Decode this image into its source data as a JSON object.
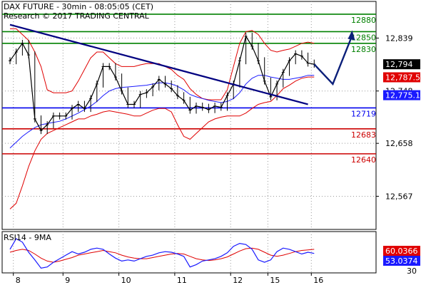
{
  "chart_data": [
    {
      "type": "line",
      "title": "DAX FUTURE - 30min - 08:05:05 (CET)",
      "subtitle": "Research © 2017 TRADING CENTRAL",
      "x_ticks": [
        "8",
        "9",
        "10",
        "11",
        "12",
        "15",
        "16"
      ],
      "y_ticks": [
        "12,839",
        "12,748",
        "12,658",
        "12,567"
      ],
      "ylim": [
        12510,
        12902
      ],
      "grid": true,
      "colors": {
        "price": "#000000",
        "bollinger": "#e00000",
        "moving_average": "#1a1aff",
        "trendline": "#000080",
        "resistance": "#008000",
        "pivot": "#0000ee",
        "support": "#cc0000",
        "arrow": "#0b1f7a"
      },
      "levels": [
        {
          "value": 12880,
          "label": "12880",
          "role": "resistance"
        },
        {
          "value": 12850,
          "label": "12850",
          "role": "resistance"
        },
        {
          "value": 12830,
          "label": "12830",
          "role": "resistance"
        },
        {
          "value": 12719,
          "label": "12719",
          "role": "pivot"
        },
        {
          "value": 12683,
          "label": "12683",
          "role": "support"
        },
        {
          "value": 12640,
          "label": "12640",
          "role": "support"
        }
      ],
      "value_tags": [
        {
          "label": "12,794",
          "value": 12794,
          "color": "#000000"
        },
        {
          "label": "12,787.5",
          "value": 12787.5,
          "color": "#e00000"
        },
        {
          "label": "12,775.1",
          "value": 12775.1,
          "color": "#1a1aff"
        }
      ],
      "series": [
        {
          "role": "price",
          "values": [
            12800,
            12815,
            12830,
            12810,
            12700,
            12680,
            12690,
            12705,
            12705,
            12705,
            12718,
            12725,
            12718,
            12735,
            12760,
            12790,
            12790,
            12772,
            12748,
            12725,
            12725,
            12742,
            12745,
            12755,
            12768,
            12760,
            12752,
            12740,
            12732,
            12715,
            12722,
            12720,
            12716,
            12722,
            12720,
            12740,
            12760,
            12800,
            12842,
            12825,
            12800,
            12765,
            12738,
            12760,
            12780,
            12800,
            12812,
            12808,
            12796,
            12794
          ]
        },
        {
          "role": "bollinger-upper",
          "values": [
            12855,
            12855,
            12845,
            12835,
            12815,
            12790,
            12750,
            12745,
            12745,
            12745,
            12748,
            12765,
            12785,
            12805,
            12815,
            12815,
            12805,
            12795,
            12790,
            12790,
            12790,
            12793,
            12795,
            12795,
            12795,
            12790,
            12785,
            12775,
            12768,
            12752,
            12742,
            12735,
            12733,
            12733,
            12733,
            12750,
            12790,
            12830,
            12850,
            12852,
            12845,
            12830,
            12818,
            12815,
            12818,
            12820,
            12825,
            12830,
            12832,
            12830
          ]
        },
        {
          "role": "bollinger-lower",
          "values": [
            12545,
            12555,
            12585,
            12618,
            12645,
            12665,
            12675,
            12680,
            12685,
            12690,
            12695,
            12700,
            12700,
            12705,
            12708,
            12712,
            12714,
            12712,
            12710,
            12708,
            12705,
            12705,
            12710,
            12715,
            12718,
            12718,
            12712,
            12690,
            12670,
            12665,
            12675,
            12685,
            12695,
            12700,
            12703,
            12705,
            12705,
            12705,
            12710,
            12718,
            12725,
            12728,
            12730,
            12740,
            12752,
            12758,
            12765,
            12770,
            12772,
            12772
          ]
        },
        {
          "role": "moving-average",
          "values": [
            12650,
            12660,
            12670,
            12678,
            12685,
            12690,
            12692,
            12694,
            12696,
            12700,
            12705,
            12710,
            12716,
            12722,
            12730,
            12740,
            12748,
            12752,
            12754,
            12755,
            12756,
            12757,
            12758,
            12760,
            12762,
            12762,
            12760,
            12756,
            12750,
            12742,
            12738,
            12735,
            12732,
            12730,
            12728,
            12730,
            12735,
            12745,
            12760,
            12770,
            12775,
            12775,
            12772,
            12770,
            12768,
            12768,
            12770,
            12772,
            12775,
            12775
          ]
        }
      ],
      "annotations": {
        "trendline": {
          "start_index": 0,
          "start_value": 12862,
          "end_index": 48,
          "end_value": 12725
        },
        "projection_arrow": {
          "from_index": 49,
          "from_value": 12794,
          "via_index": 52,
          "via_value": 12760,
          "to_index": 55,
          "to_value": 12850
        }
      }
    },
    {
      "type": "line",
      "title": "RSI14 - 9MA",
      "y_ticks": [
        "30"
      ],
      "ylim": [
        20,
        90
      ],
      "colors": {
        "rsi": "#1a1aff",
        "ma": "#e00000"
      },
      "value_tags": [
        {
          "label": "60.0366",
          "value": 60.0366,
          "color": "#e00000"
        },
        {
          "label": "53.0374",
          "value": 53.0374,
          "color": "#1a1aff"
        }
      ],
      "series": [
        {
          "role": "rsi",
          "values": [
            60,
            78,
            72,
            55,
            42,
            28,
            30,
            38,
            44,
            50,
            56,
            52,
            55,
            60,
            62,
            60,
            52,
            45,
            40,
            42,
            40,
            44,
            48,
            50,
            54,
            56,
            55,
            52,
            48,
            30,
            34,
            40,
            42,
            44,
            48,
            54,
            65,
            70,
            68,
            60,
            42,
            38,
            42,
            56,
            62,
            60,
            56,
            52,
            55,
            53
          ]
        },
        {
          "role": "rsi-ma",
          "values": [
            55,
            58,
            60,
            58,
            52,
            45,
            40,
            38,
            40,
            43,
            46,
            50,
            52,
            54,
            56,
            58,
            56,
            54,
            50,
            47,
            45,
            44,
            44,
            46,
            48,
            50,
            52,
            53,
            52,
            48,
            44,
            42,
            41,
            42,
            44,
            47,
            52,
            57,
            61,
            62,
            60,
            55,
            50,
            48,
            50,
            53,
            56,
            58,
            59,
            60
          ]
        }
      ]
    }
  ]
}
